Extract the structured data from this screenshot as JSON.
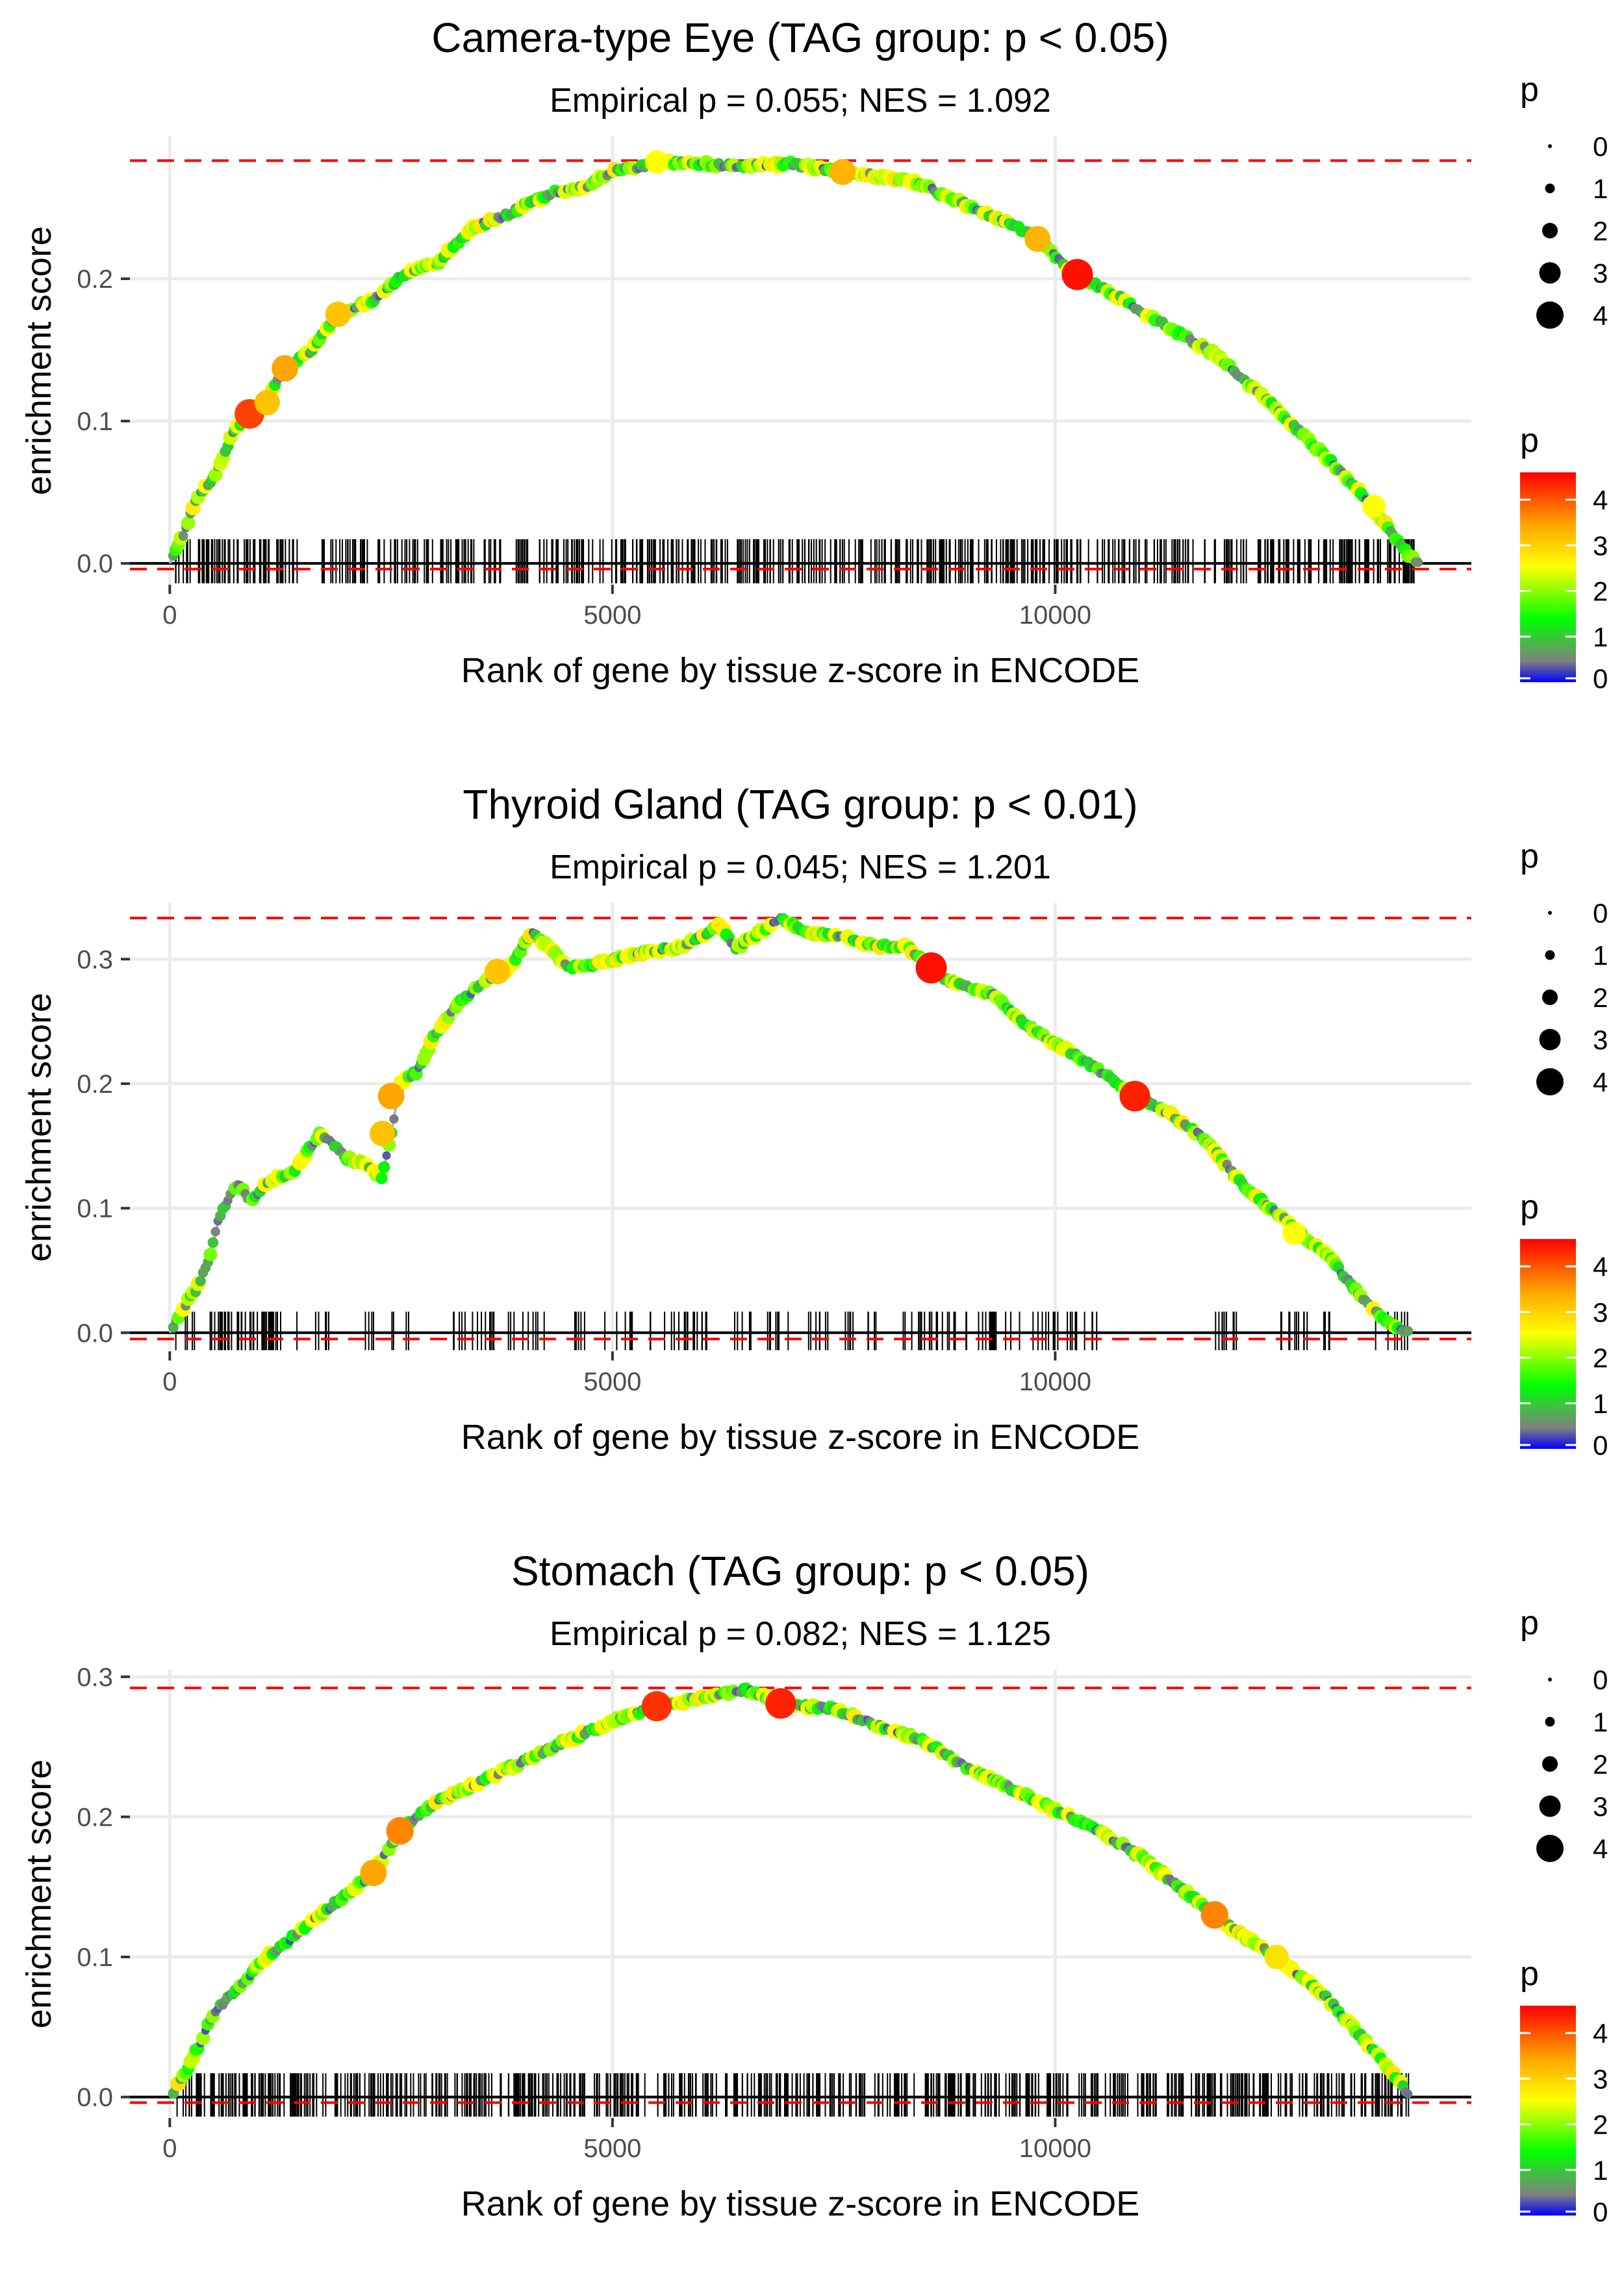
{
  "chart_data": [
    {
      "type": "line",
      "title": "Camera-type Eye (TAG group: p < 0.05)",
      "subtitle": "Empirical p = 0.055; NES = 1.092",
      "xlabel": "Rank of gene by tissue z-score in ENCODE",
      "ylabel": "enrichment score",
      "xlim": [
        -450,
        14700
      ],
      "ylim": [
        -0.015,
        0.3
      ],
      "x_ticks": [
        0,
        5000,
        10000
      ],
      "x_tick_labels": [
        "0",
        "5000",
        "10000"
      ],
      "y_ticks": [
        0.0,
        0.1,
        0.2
      ],
      "y_tick_labels": [
        "0.0",
        "0.1",
        "0.2"
      ],
      "max_es": 0.283,
      "min_es": -0.004,
      "grid": true,
      "rug_seed": 11,
      "rug_count": 560,
      "rug_gaps": [
        [
          1500,
          1650
        ],
        [
          3800,
          3900
        ],
        [
          10300,
          10350
        ]
      ],
      "curve": [
        [
          0,
          0
        ],
        [
          150,
          0.02
        ],
        [
          300,
          0.045
        ],
        [
          500,
          0.06
        ],
        [
          700,
          0.09
        ],
        [
          900,
          0.105
        ],
        [
          1100,
          0.115
        ],
        [
          1300,
          0.137
        ],
        [
          1600,
          0.15
        ],
        [
          1900,
          0.175
        ],
        [
          2300,
          0.185
        ],
        [
          2700,
          0.205
        ],
        [
          3000,
          0.21
        ],
        [
          3400,
          0.235
        ],
        [
          3800,
          0.245
        ],
        [
          4300,
          0.26
        ],
        [
          4700,
          0.265
        ],
        [
          5000,
          0.275
        ],
        [
          5300,
          0.279
        ],
        [
          5600,
          0.282
        ],
        [
          6000,
          0.281
        ],
        [
          6500,
          0.279
        ],
        [
          7000,
          0.281
        ],
        [
          7500,
          0.276
        ],
        [
          7900,
          0.273
        ],
        [
          8400,
          0.268
        ],
        [
          9000,
          0.252
        ],
        [
          9500,
          0.238
        ],
        [
          9800,
          0.228
        ],
        [
          10200,
          0.204
        ],
        [
          10700,
          0.188
        ],
        [
          11300,
          0.165
        ],
        [
          11800,
          0.147
        ],
        [
          12300,
          0.12
        ],
        [
          12800,
          0.09
        ],
        [
          13300,
          0.06
        ],
        [
          13700,
          0.03
        ],
        [
          14000,
          0.005
        ],
        [
          14100,
          0
        ]
      ],
      "highlights": [
        [
          900,
          0.105,
          4.2
        ],
        [
          1100,
          0.113,
          3.4
        ],
        [
          1300,
          0.137,
          3.6
        ],
        [
          1900,
          0.175,
          3.4
        ],
        [
          5500,
          0.282,
          3.0
        ],
        [
          7600,
          0.275,
          3.5
        ],
        [
          9800,
          0.228,
          3.5
        ],
        [
          10250,
          0.203,
          4.5
        ],
        [
          13600,
          0.04,
          3.0
        ]
      ],
      "legend_size_title": "p",
      "legend_size_labels": [
        "0",
        "1",
        "2",
        "3",
        "4"
      ],
      "legend_color_title": "p",
      "legend_color_labels": [
        "4",
        "3",
        "2",
        "1",
        "0"
      ]
    },
    {
      "type": "line",
      "title": "Thyroid Gland (TAG group: p < 0.01)",
      "subtitle": "Empirical p = 0.045; NES = 1.201",
      "xlabel": "Rank of gene by tissue z-score in ENCODE",
      "ylabel": "enrichment score",
      "xlim": [
        -450,
        14700
      ],
      "ylim": [
        -0.015,
        0.345
      ],
      "x_ticks": [
        0,
        5000,
        10000
      ],
      "x_tick_labels": [
        "0",
        "5000",
        "10000"
      ],
      "y_ticks": [
        0.0,
        0.1,
        0.2,
        0.3
      ],
      "y_tick_labels": [
        "0.0",
        "0.1",
        "0.2",
        "0.3"
      ],
      "max_es": 0.333,
      "min_es": -0.005,
      "grid": true,
      "rug_seed": 23,
      "rug_count": 280,
      "rug_gaps": [
        [
          1800,
          2200
        ],
        [
          2700,
          3200
        ],
        [
          4250,
          4550
        ],
        [
          10500,
          11800
        ],
        [
          12100,
          12500
        ],
        [
          13100,
          13600
        ]
      ],
      "curve": [
        [
          0,
          0
        ],
        [
          150,
          0.02
        ],
        [
          300,
          0.035
        ],
        [
          450,
          0.06
        ],
        [
          550,
          0.09
        ],
        [
          700,
          0.115
        ],
        [
          800,
          0.12
        ],
        [
          900,
          0.105
        ],
        [
          1100,
          0.12
        ],
        [
          1400,
          0.13
        ],
        [
          1700,
          0.16
        ],
        [
          1800,
          0.155
        ],
        [
          2000,
          0.14
        ],
        [
          2200,
          0.135
        ],
        [
          2400,
          0.125
        ],
        [
          2500,
          0.16
        ],
        [
          2600,
          0.2
        ],
        [
          2800,
          0.21
        ],
        [
          3000,
          0.24
        ],
        [
          3200,
          0.26
        ],
        [
          3500,
          0.28
        ],
        [
          3800,
          0.29
        ],
        [
          4100,
          0.322
        ],
        [
          4500,
          0.293
        ],
        [
          4800,
          0.295
        ],
        [
          5000,
          0.3
        ],
        [
          5400,
          0.306
        ],
        [
          5800,
          0.31
        ],
        [
          6200,
          0.327
        ],
        [
          6400,
          0.309
        ],
        [
          6600,
          0.319
        ],
        [
          6900,
          0.332
        ],
        [
          7200,
          0.322
        ],
        [
          7600,
          0.318
        ],
        [
          8000,
          0.31
        ],
        [
          8300,
          0.311
        ],
        [
          8600,
          0.293
        ],
        [
          8800,
          0.282
        ],
        [
          9300,
          0.272
        ],
        [
          9700,
          0.245
        ],
        [
          10300,
          0.22
        ],
        [
          10900,
          0.19
        ],
        [
          11300,
          0.176
        ],
        [
          11700,
          0.155
        ],
        [
          12100,
          0.12
        ],
        [
          12600,
          0.09
        ],
        [
          13100,
          0.06
        ],
        [
          13500,
          0.025
        ],
        [
          13800,
          0.005
        ],
        [
          14000,
          0
        ]
      ],
      "highlights": [
        [
          2400,
          0.16,
          3.4
        ],
        [
          2500,
          0.19,
          3.6
        ],
        [
          3700,
          0.29,
          3.4
        ],
        [
          8600,
          0.293,
          4.5
        ],
        [
          10900,
          0.19,
          4.4
        ],
        [
          12700,
          0.08,
          3.0
        ]
      ],
      "legend_size_title": "p",
      "legend_size_labels": [
        "0",
        "1",
        "2",
        "3",
        "4"
      ],
      "legend_color_title": "p",
      "legend_color_labels": [
        "4",
        "3",
        "2",
        "1",
        "0"
      ]
    },
    {
      "type": "line",
      "title": "Stomach (TAG group: p < 0.05)",
      "subtitle": "Empirical p = 0.082; NES = 1.125",
      "xlabel": "Rank of gene by tissue z-score in ENCODE",
      "ylabel": "enrichment score",
      "xlim": [
        -450,
        14700
      ],
      "ylim": [
        -0.015,
        0.305
      ],
      "x_ticks": [
        0,
        5000,
        10000
      ],
      "x_tick_labels": [
        "0",
        "5000",
        "10000"
      ],
      "y_ticks": [
        0.0,
        0.1,
        0.2,
        0.3
      ],
      "y_tick_labels": [
        "0.0",
        "0.1",
        "0.2",
        "0.3"
      ],
      "max_es": 0.292,
      "min_es": -0.004,
      "grid": true,
      "rug_seed": 37,
      "rug_count": 620,
      "rug_gaps": [],
      "curve": [
        [
          0,
          0
        ],
        [
          200,
          0.02
        ],
        [
          500,
          0.06
        ],
        [
          800,
          0.08
        ],
        [
          1100,
          0.1
        ],
        [
          1500,
          0.12
        ],
        [
          1900,
          0.14
        ],
        [
          2300,
          0.16
        ],
        [
          2600,
          0.19
        ],
        [
          3000,
          0.21
        ],
        [
          3500,
          0.225
        ],
        [
          4000,
          0.24
        ],
        [
          4500,
          0.255
        ],
        [
          5000,
          0.268
        ],
        [
          5500,
          0.279
        ],
        [
          6000,
          0.285
        ],
        [
          6500,
          0.291
        ],
        [
          7000,
          0.28
        ],
        [
          7500,
          0.277
        ],
        [
          8000,
          0.265
        ],
        [
          8500,
          0.255
        ],
        [
          9000,
          0.235
        ],
        [
          9500,
          0.22
        ],
        [
          10000,
          0.205
        ],
        [
          10500,
          0.19
        ],
        [
          11000,
          0.17
        ],
        [
          11500,
          0.145
        ],
        [
          12000,
          0.12
        ],
        [
          12500,
          0.1
        ],
        [
          13000,
          0.075
        ],
        [
          13500,
          0.04
        ],
        [
          13900,
          0.01
        ],
        [
          14000,
          0
        ]
      ],
      "highlights": [
        [
          2300,
          0.16,
          3.6
        ],
        [
          2600,
          0.19,
          3.8
        ],
        [
          5500,
          0.279,
          4.3
        ],
        [
          6900,
          0.281,
          4.4
        ],
        [
          11800,
          0.13,
          3.8
        ],
        [
          12500,
          0.1,
          3.2
        ]
      ],
      "legend_size_title": "p",
      "legend_size_labels": [
        "0",
        "1",
        "2",
        "3",
        "4"
      ],
      "legend_color_title": "p",
      "legend_color_labels": [
        "4",
        "3",
        "2",
        "1",
        "0"
      ]
    }
  ]
}
